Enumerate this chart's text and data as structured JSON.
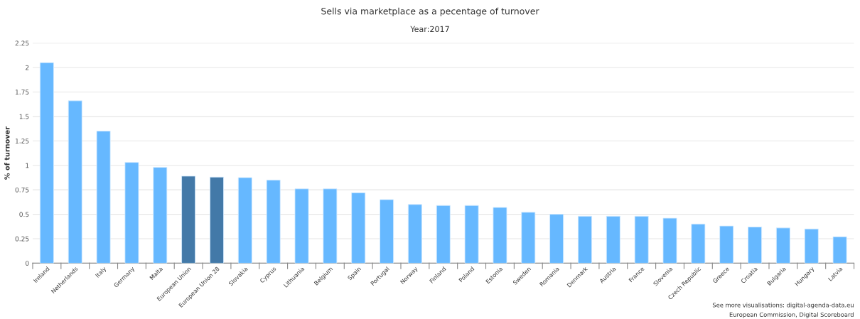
{
  "chart_data": {
    "type": "bar",
    "title": "Sells via marketplace as a pecentage of turnover",
    "subtitle": "Year:2017",
    "ylabel": "% of turnover",
    "categories": [
      "Ireland",
      "Netherlands",
      "Italy",
      "Germany",
      "Malta",
      "European Union",
      "European Union 28",
      "Slovakia",
      "Cyprus",
      "Lithuania",
      "Belgium",
      "Spain",
      "Portugal",
      "Norway",
      "Finland",
      "Poland",
      "Estonia",
      "Sweden",
      "Romania",
      "Denmark",
      "Austria",
      "France",
      "Slovenia",
      "Czech Republic",
      "Greece",
      "Croatia",
      "Bulgaria",
      "Hungary",
      "Latvia"
    ],
    "values": [
      2.05,
      1.66,
      1.35,
      1.03,
      0.98,
      0.89,
      0.88,
      0.875,
      0.85,
      0.76,
      0.76,
      0.72,
      0.65,
      0.6,
      0.59,
      0.59,
      0.57,
      0.52,
      0.5,
      0.48,
      0.48,
      0.48,
      0.46,
      0.4,
      0.38,
      0.37,
      0.36,
      0.35,
      0.27
    ],
    "colors": [
      "#66b8ff",
      "#66b8ff",
      "#66b8ff",
      "#66b8ff",
      "#66b8ff",
      "#4379a8",
      "#4379a8",
      "#66b8ff",
      "#66b8ff",
      "#66b8ff",
      "#66b8ff",
      "#66b8ff",
      "#66b8ff",
      "#66b8ff",
      "#66b8ff",
      "#66b8ff",
      "#66b8ff",
      "#66b8ff",
      "#66b8ff",
      "#66b8ff",
      "#66b8ff",
      "#66b8ff",
      "#66b8ff",
      "#66b8ff",
      "#66b8ff",
      "#66b8ff",
      "#66b8ff",
      "#66b8ff",
      "#66b8ff"
    ],
    "ylim": [
      0,
      2.25
    ],
    "yticks": [
      0,
      0.25,
      0.5,
      0.75,
      1,
      1.25,
      1.5,
      1.75,
      2,
      2.25
    ],
    "grid": "y",
    "legend": false,
    "annotations": [
      "See more visualisations: digital-agenda-data.eu",
      "European Commission, Digital Scoreboard"
    ]
  }
}
